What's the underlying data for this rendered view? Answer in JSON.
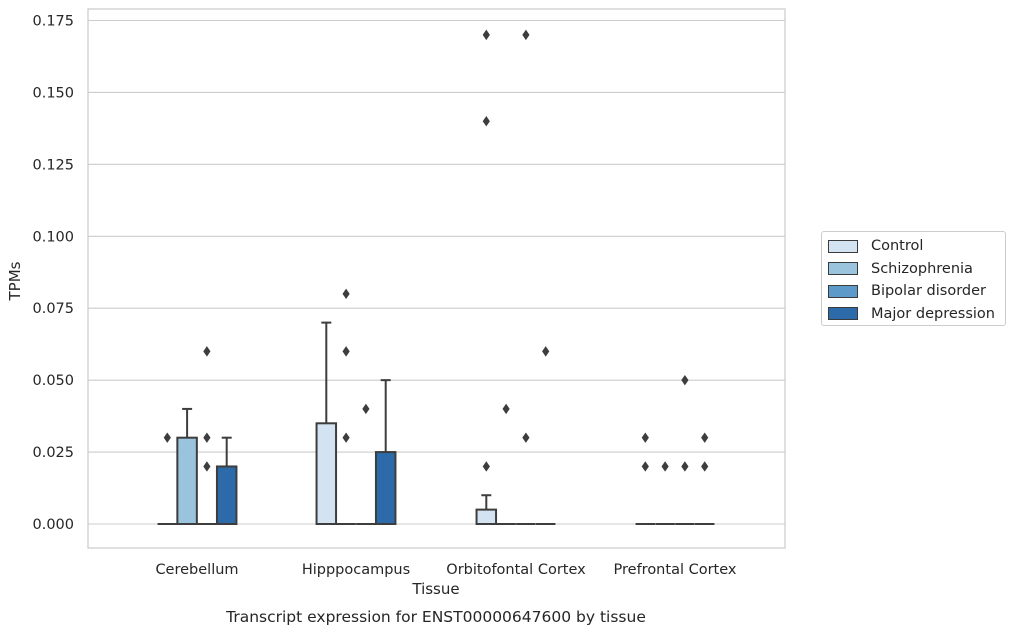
{
  "chart_data": {
    "type": "box",
    "title": "",
    "caption": "Transcript expression for ENST00000647600 by tissue",
    "xlabel": "Tissue",
    "ylabel": "TPMs",
    "ylim": [
      -0.0085,
      0.179
    ],
    "yticks": [
      "0.000",
      "0.025",
      "0.050",
      "0.075",
      "0.100",
      "0.125",
      "0.150",
      "0.175"
    ],
    "ytick_values": [
      0,
      0.025,
      0.05,
      0.075,
      0.1,
      0.125,
      0.15,
      0.175
    ],
    "grid": true,
    "legend_position": "right",
    "categories": [
      "Cerebellum",
      "Hipppocampus",
      "Orbitofontal Cortex",
      "Prefrontal Cortex"
    ],
    "series": [
      {
        "name": "Control",
        "color": "#d4e3f1",
        "boxes": [
          {
            "q1": 0,
            "median": 0,
            "q3": 0,
            "whisker_low": 0,
            "whisker_high": 0,
            "outliers": [
              0.03
            ]
          },
          {
            "q1": 0,
            "median": 0,
            "q3": 0.035,
            "whisker_low": 0,
            "whisker_high": 0.07,
            "outliers": []
          },
          {
            "q1": 0,
            "median": 0,
            "q3": 0.005,
            "whisker_low": 0,
            "whisker_high": 0.01,
            "outliers": [
              0.02,
              0.14,
              0.17
            ]
          },
          {
            "q1": 0,
            "median": 0,
            "q3": 0,
            "whisker_low": 0,
            "whisker_high": 0,
            "outliers": [
              0.02,
              0.03
            ]
          }
        ]
      },
      {
        "name": "Schizophrenia",
        "color": "#9ac3dd",
        "boxes": [
          {
            "q1": 0,
            "median": 0,
            "q3": 0.03,
            "whisker_low": 0,
            "whisker_high": 0.04,
            "outliers": []
          },
          {
            "q1": 0,
            "median": 0,
            "q3": 0,
            "whisker_low": 0,
            "whisker_high": 0,
            "outliers": [
              0.03,
              0.06,
              0.08
            ]
          },
          {
            "q1": 0,
            "median": 0,
            "q3": 0,
            "whisker_low": 0,
            "whisker_high": 0,
            "outliers": [
              0.04
            ]
          },
          {
            "q1": 0,
            "median": 0,
            "q3": 0,
            "whisker_low": 0,
            "whisker_high": 0,
            "outliers": [
              0.02
            ]
          }
        ]
      },
      {
        "name": "Bipolar disorder",
        "color": "#5b9ac9",
        "boxes": [
          {
            "q1": 0,
            "median": 0,
            "q3": 0,
            "whisker_low": 0,
            "whisker_high": 0,
            "outliers": [
              0.02,
              0.03,
              0.06
            ]
          },
          {
            "q1": 0,
            "median": 0,
            "q3": 0,
            "whisker_low": 0,
            "whisker_high": 0,
            "outliers": [
              0.04
            ]
          },
          {
            "q1": 0,
            "median": 0,
            "q3": 0,
            "whisker_low": 0,
            "whisker_high": 0,
            "outliers": [
              0.03,
              0.17
            ]
          },
          {
            "q1": 0,
            "median": 0,
            "q3": 0,
            "whisker_low": 0,
            "whisker_high": 0,
            "outliers": [
              0.02,
              0.05
            ]
          }
        ]
      },
      {
        "name": "Major depression",
        "color": "#2c6aa9",
        "boxes": [
          {
            "q1": 0,
            "median": 0,
            "q3": 0.02,
            "whisker_low": 0,
            "whisker_high": 0.03,
            "outliers": []
          },
          {
            "q1": 0,
            "median": 0,
            "q3": 0.025,
            "whisker_low": 0,
            "whisker_high": 0.05,
            "outliers": []
          },
          {
            "q1": 0,
            "median": 0,
            "q3": 0,
            "whisker_low": 0,
            "whisker_high": 0,
            "outliers": [
              0.06
            ]
          },
          {
            "q1": 0,
            "median": 0,
            "q3": 0,
            "whisker_low": 0,
            "whisker_high": 0,
            "outliers": [
              0.02,
              0.03
            ]
          }
        ]
      }
    ]
  }
}
